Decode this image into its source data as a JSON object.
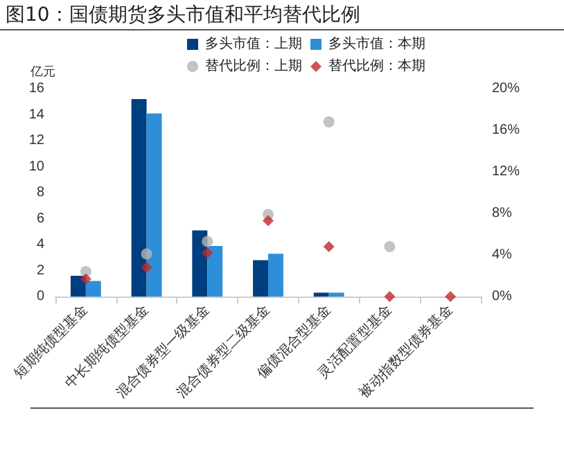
{
  "chart_data": {
    "type": "bar",
    "title": "图10：国债期货多头市值和平均替代比例",
    "ylabel": "亿元",
    "categories": [
      "短期纯债型基金",
      "中长期纯债型基金",
      "混合债券型一级基金",
      "混合债券型二级基金",
      "偏债混合型基金",
      "灵活配置型基金",
      "被动指数型债券基金"
    ],
    "series": [
      {
        "name": "多头市值：上期",
        "type": "bar",
        "color": "#003f7f",
        "values": [
          1.6,
          15.2,
          5.1,
          2.8,
          0.3,
          0,
          0
        ]
      },
      {
        "name": "多头市值：本期",
        "type": "bar",
        "color": "#2e8fd8",
        "values": [
          1.2,
          14.1,
          3.9,
          3.3,
          0.3,
          0,
          0
        ]
      },
      {
        "name": "替代比例：上期",
        "type": "scatter",
        "axis": "y2",
        "marker": "circle",
        "color": "#b4b4b4",
        "x": [
          "短期纯债型基金",
          "中长期纯债型基金",
          "混合债券型一级基金",
          "混合债券型二级基金",
          "偏债混合型基金",
          "灵活配置型基金"
        ],
        "values": [
          2.4,
          4.1,
          5.3,
          7.9,
          16.8,
          4.8
        ]
      },
      {
        "name": "替代比例：本期",
        "type": "scatter",
        "axis": "y2",
        "marker": "diamond",
        "color": "#c0282c",
        "x": [
          "短期纯债型基金",
          "中长期纯债型基金",
          "混合债券型一级基金",
          "混合债券型二级基金",
          "偏债混合型基金",
          "灵活配置型基金",
          "被动指数型债券基金"
        ],
        "values": [
          1.7,
          2.8,
          4.2,
          7.3,
          4.8,
          0,
          0
        ]
      }
    ],
    "ylim": [
      0,
      16
    ],
    "yticks": [
      0,
      2,
      4,
      6,
      8,
      10,
      12,
      14,
      16
    ],
    "y2lim": [
      0,
      20
    ],
    "y2ticks": [
      {
        "value": 0,
        "label": "0%"
      },
      {
        "value": 4,
        "label": "4%"
      },
      {
        "value": 8,
        "label": "8%"
      },
      {
        "value": 12,
        "label": "12%"
      },
      {
        "value": 16,
        "label": "16%"
      },
      {
        "value": 20,
        "label": "20%"
      }
    ],
    "legend": "top",
    "grid": false
  }
}
